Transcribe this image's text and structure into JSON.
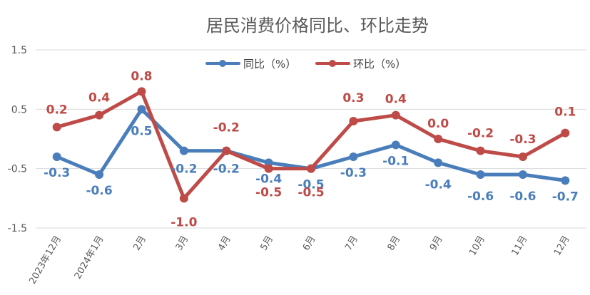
{
  "chart_data": {
    "type": "line",
    "title": "居民消费价格同比、环比走势",
    "categories": [
      "2023年12月",
      "2024年1月",
      "2月",
      "3月",
      "4月",
      "5月",
      "6月",
      "7月",
      "8月",
      "9月",
      "10月",
      "11月",
      "12月"
    ],
    "y_ticks": [
      "1.5",
      "0.5",
      "-0.5",
      "-1.5"
    ],
    "ylim": [
      -1.5,
      1.5
    ],
    "grid": true,
    "legend_position": "top-center",
    "series": [
      {
        "name": "同比（%）",
        "color": "#4A7EBB",
        "values": [
          -0.3,
          -0.6,
          0.5,
          -0.2,
          -0.2,
          -0.4,
          -0.5,
          -0.3,
          -0.1,
          -0.4,
          -0.6,
          -0.6,
          -0.7
        ],
        "labels": [
          "-0.3",
          "-0.6",
          "0.5",
          "-0.2",
          "-0.2",
          "-0.4",
          "-0.5",
          "-0.3",
          "-0.1",
          "-0.4",
          "-0.6",
          "-0.6",
          "-0.7"
        ]
      },
      {
        "name": "环比（%）",
        "color": "#BE4B48",
        "values": [
          0.2,
          0.4,
          0.8,
          -1.0,
          -0.2,
          -0.5,
          -0.5,
          0.3,
          0.4,
          0.0,
          -0.2,
          -0.3,
          0.1
        ],
        "labels": [
          "0.2",
          "0.4",
          "0.8",
          "-1.0",
          "-0.2",
          "-0.5",
          "-0.5",
          "0.3",
          "0.4",
          "0.0",
          "-0.2",
          "-0.3",
          "0.1"
        ]
      }
    ]
  }
}
